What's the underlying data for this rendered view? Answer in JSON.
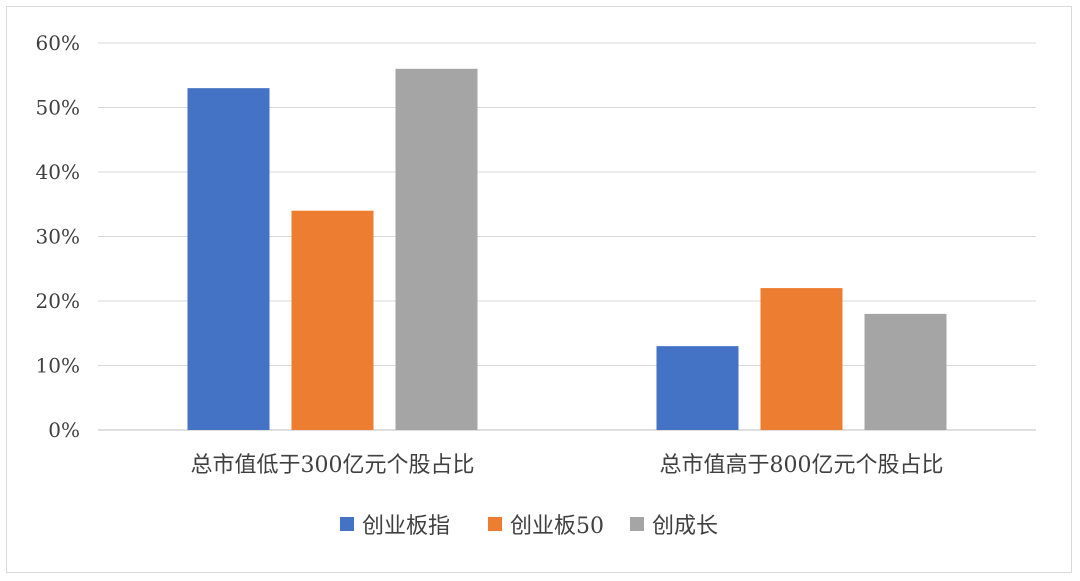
{
  "chart_data": {
    "type": "bar",
    "categories": [
      "总市值低于300亿元个股占比",
      "总市值高于800亿元个股占比"
    ],
    "series": [
      {
        "name": "创业板指",
        "values": [
          53,
          13
        ],
        "color": "#4472c4"
      },
      {
        "name": "创业板50",
        "values": [
          34,
          22
        ],
        "color": "#ed7d31"
      },
      {
        "name": "创成长",
        "values": [
          56,
          18
        ],
        "color": "#a5a5a5"
      }
    ],
    "ylim": [
      0,
      60
    ],
    "yticks": [
      "0%",
      "10%",
      "20%",
      "30%",
      "40%",
      "50%",
      "60%"
    ],
    "grid": true,
    "legend_position": "bottom"
  }
}
